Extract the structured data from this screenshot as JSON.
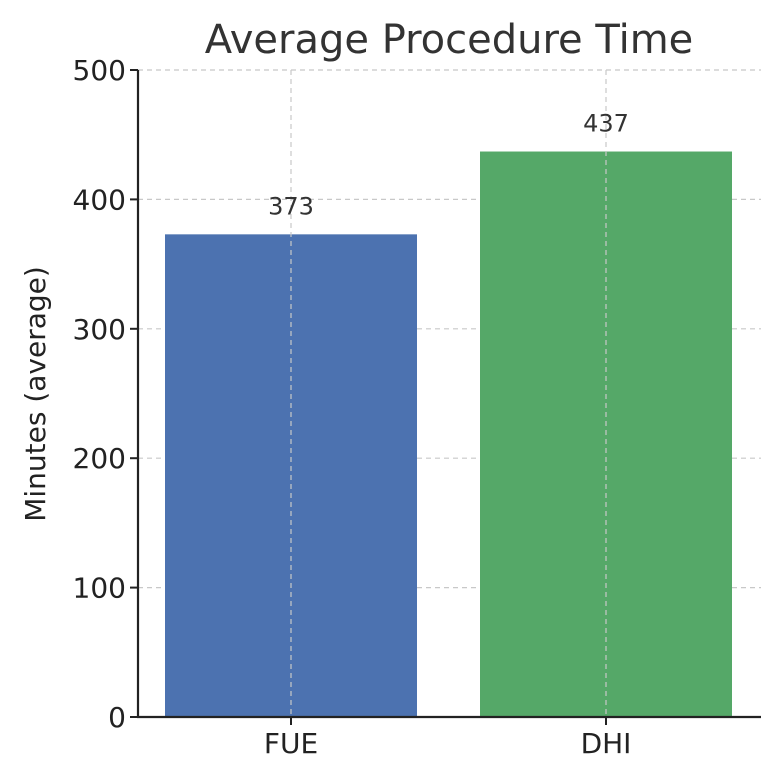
{
  "chart_data": {
    "type": "bar",
    "title": "Average Procedure Time",
    "xlabel": "",
    "ylabel": "Minutes (average)",
    "categories": [
      "FUE",
      "DHI"
    ],
    "values": [
      373,
      437
    ],
    "data_labels": [
      "373",
      "437"
    ],
    "colors": [
      "#4c72b0",
      "#55a868"
    ],
    "ylim": [
      0,
      500
    ],
    "yticks": [
      0,
      100,
      200,
      300,
      400,
      500
    ],
    "ytick_labels": [
      "0",
      "100",
      "200",
      "300",
      "400",
      "500"
    ],
    "grid": true
  }
}
